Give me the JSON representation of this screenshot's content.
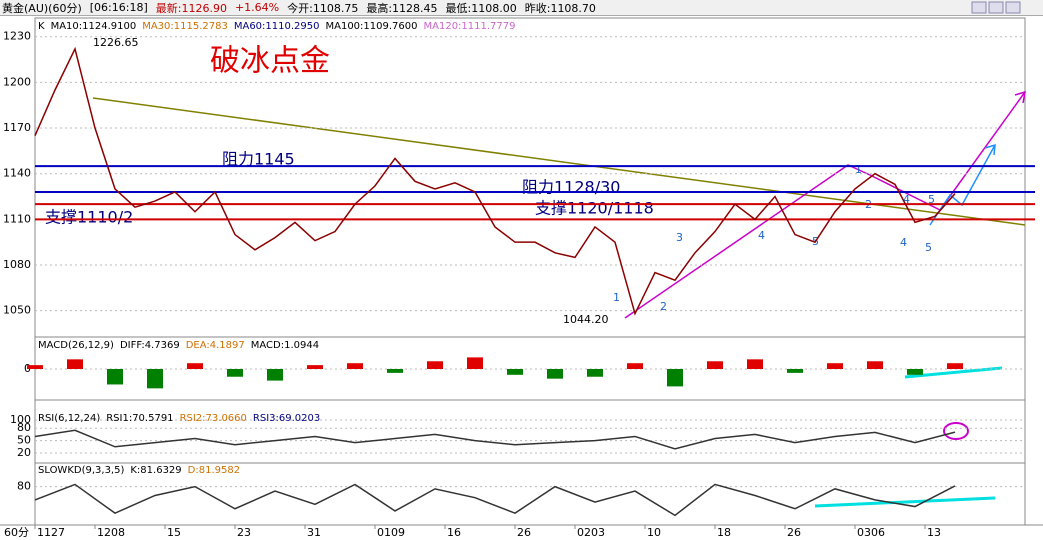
{
  "header": [
    "黄金(AU)(60分)",
    "[06:16:18]",
    "最新:1126.90",
    "+1.64%",
    "今开:1108.75",
    "最高:1128.45",
    "最低:1108.00",
    "昨收:1108.70"
  ],
  "corner_label": "60分",
  "chart_data": [
    {
      "type": "line",
      "title": "破冰点金",
      "legend": [
        {
          "label": "K",
          "color": "#000000"
        },
        {
          "label": "MA10:1124.9100",
          "color": "#000000"
        },
        {
          "label": "MA30:1115.2783",
          "color": "#d07000"
        },
        {
          "label": "MA60:1110.2950",
          "color": "#000080"
        },
        {
          "label": "MA100:1109.7600",
          "color": "#000000"
        },
        {
          "label": "MA120:1111.7779",
          "color": "#cc66cc"
        }
      ],
      "annotations": [
        "1226.65",
        "1044.20",
        "阻力1145",
        "阻力1128/30",
        "支撑1120/1118",
        "支撑1110/2",
        "1",
        "2",
        "3",
        "4",
        "5",
        "4",
        "5",
        "1",
        "2",
        "4",
        "5"
      ],
      "levels": [
        {
          "value": 1145,
          "color": "#0000c0"
        },
        {
          "value": 1128,
          "color": "#0000c0"
        },
        {
          "value": 1120,
          "color": "#d00000"
        },
        {
          "value": 1110,
          "color": "#d00000"
        }
      ],
      "xlim": [
        0,
        99
      ],
      "xticks": [
        {
          "value": 0,
          "label": "1127"
        },
        {
          "value": 6,
          "label": "1208"
        },
        {
          "value": 13,
          "label": "15"
        },
        {
          "value": 20,
          "label": "23"
        },
        {
          "value": 27,
          "label": "31"
        },
        {
          "value": 34,
          "label": "0109"
        },
        {
          "value": 41,
          "label": "16"
        },
        {
          "value": 48,
          "label": "26"
        },
        {
          "value": 54,
          "label": "0203"
        },
        {
          "value": 61,
          "label": "10"
        },
        {
          "value": 68,
          "label": "18"
        },
        {
          "value": 75,
          "label": "26"
        },
        {
          "value": 82,
          "label": "0306"
        },
        {
          "value": 89,
          "label": "13"
        }
      ],
      "ylim": [
        1034,
        1241
      ],
      "yticks": [
        1050,
        1080,
        1110,
        1140,
        1170,
        1200,
        1230
      ],
      "series": [
        {
          "color": "#8b0000",
          "x": [
            0,
            2,
            4,
            6,
            8,
            10,
            12,
            14,
            16,
            18,
            20,
            22,
            24,
            26,
            28,
            30,
            32,
            34,
            36,
            38,
            40,
            42,
            44,
            46,
            48,
            50,
            52,
            54,
            56,
            58,
            60,
            62,
            64,
            66,
            68,
            70,
            72,
            74,
            76,
            78,
            80,
            82,
            84,
            86,
            88,
            90,
            92
          ],
          "values": [
            1165,
            1195,
            1222,
            1170,
            1130,
            1118,
            1122,
            1128,
            1115,
            1128,
            1100,
            1090,
            1098,
            1108,
            1096,
            1102,
            1120,
            1132,
            1150,
            1135,
            1130,
            1134,
            1128,
            1105,
            1095,
            1095,
            1088,
            1085,
            1105,
            1095,
            1048,
            1075,
            1070,
            1088,
            1102,
            1120,
            1110,
            1125,
            1100,
            1095,
            1115,
            1130,
            1140,
            1133,
            1108,
            1112,
            1126.9
          ]
        }
      ]
    },
    {
      "type": "bar",
      "legend": [
        {
          "label": "MACD(26,12,9)",
          "color": "#000000"
        },
        {
          "label": "DIFF:4.7369",
          "color": "#000000"
        },
        {
          "label": "DEA:4.1897",
          "color": "#d07000"
        },
        {
          "label": "MACD:1.0944",
          "color": "#000000"
        }
      ],
      "ylim": [
        -15,
        15
      ],
      "yticks": [
        0
      ],
      "series": [
        {
          "color": "#e00000",
          "neg_color": "#008000",
          "x": [
            0,
            4,
            8,
            12,
            16,
            20,
            24,
            28,
            32,
            36,
            40,
            44,
            48,
            52,
            56,
            60,
            64,
            68,
            72,
            76,
            80,
            84,
            88,
            92
          ],
          "values": [
            2,
            5,
            -8,
            -10,
            3,
            -4,
            -6,
            2,
            3,
            -2,
            4,
            6,
            -3,
            -5,
            -4,
            3,
            -9,
            4,
            5,
            -2,
            3,
            4,
            -3,
            3
          ]
        }
      ]
    },
    {
      "type": "line",
      "legend": [
        {
          "label": "RSI(6,12,24)",
          "color": "#000000"
        },
        {
          "label": "RSI1:70.5791",
          "color": "#000000"
        },
        {
          "label": "RSI2:73.0660",
          "color": "#d07000"
        },
        {
          "label": "RSI3:69.0203",
          "color": "#000080"
        }
      ],
      "ylim": [
        -2,
        117
      ],
      "yticks": [
        20,
        50,
        80,
        100
      ],
      "series": [
        {
          "color": "#333333",
          "x": [
            0,
            4,
            8,
            12,
            16,
            20,
            24,
            28,
            32,
            36,
            40,
            44,
            48,
            52,
            56,
            60,
            64,
            68,
            72,
            76,
            80,
            84,
            88,
            92
          ],
          "values": [
            60,
            75,
            35,
            45,
            55,
            40,
            50,
            60,
            45,
            55,
            65,
            50,
            40,
            45,
            50,
            60,
            30,
            55,
            65,
            45,
            60,
            70,
            45,
            70.58
          ]
        }
      ]
    },
    {
      "type": "line",
      "legend": [
        {
          "label": "SLOWKD(9,3,3,5)",
          "color": "#000000"
        },
        {
          "label": "K:81.6329",
          "color": "#000000"
        },
        {
          "label": "D:81.9582",
          "color": "#d07000"
        }
      ],
      "ylim": [
        0,
        129
      ],
      "yticks": [
        80
      ],
      "series": [
        {
          "color": "#333333",
          "x": [
            0,
            4,
            8,
            12,
            16,
            20,
            24,
            28,
            32,
            36,
            40,
            44,
            48,
            52,
            56,
            60,
            64,
            68,
            72,
            76,
            80,
            84,
            88,
            92
          ],
          "values": [
            50,
            85,
            20,
            60,
            80,
            30,
            70,
            40,
            85,
            25,
            75,
            55,
            20,
            80,
            45,
            70,
            15,
            85,
            60,
            30,
            75,
            50,
            35,
            81.63
          ]
        }
      ]
    }
  ]
}
